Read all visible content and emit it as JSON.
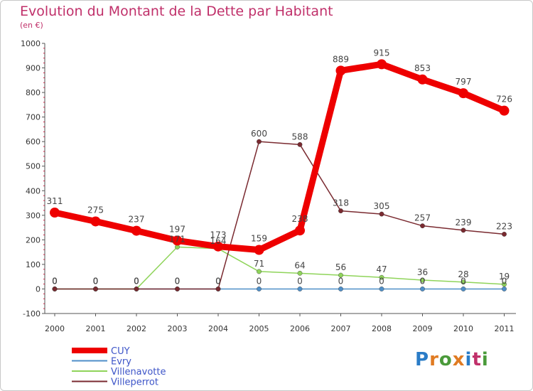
{
  "title": "Evolution du Montant de la Dette par Habitant",
  "subtitle": "(en €)",
  "logo": {
    "text": "Proxiti",
    "letters": [
      "P",
      "r",
      "o",
      "x",
      "i",
      "t",
      "i"
    ],
    "colors": [
      "#2a7cc7",
      "#e07b22",
      "#4a9a3a",
      "#e07b22",
      "#2a7cc7",
      "#c0306a",
      "#4a9a3a"
    ]
  },
  "chart_data": {
    "type": "line",
    "x": [
      "2000",
      "2001",
      "2002",
      "2003",
      "2004",
      "2005",
      "2006",
      "2007",
      "2008",
      "2009",
      "2010",
      "2011"
    ],
    "ylim": [
      -100,
      1000
    ],
    "yticks": [
      "-100",
      "0",
      "100",
      "200",
      "300",
      "400",
      "500",
      "600",
      "700",
      "800",
      "900",
      "1000"
    ],
    "grid": false,
    "legend_position": "bottom-left",
    "series": [
      {
        "name": "CUY",
        "color": "#ee0000",
        "values": [
          311,
          275,
          237,
          197,
          173,
          159,
          238,
          889,
          915,
          853,
          797,
          726
        ],
        "labels": [
          "311",
          "275",
          "237",
          "197",
          "173",
          "159",
          "238",
          "889",
          "915",
          "853",
          "797",
          "726"
        ]
      },
      {
        "name": "Evry",
        "color": "#4f8fc8",
        "values": [
          0,
          0,
          0,
          0,
          0,
          0,
          0,
          0,
          0,
          0,
          0,
          0
        ],
        "labels": [
          "0",
          "0",
          "0",
          "0",
          "0",
          "0",
          "0",
          "0",
          "0",
          "0",
          "0",
          "0"
        ]
      },
      {
        "name": "Villenavotte",
        "color": "#8fd45a",
        "values": [
          0,
          0,
          0,
          171,
          164,
          71,
          64,
          56,
          47,
          36,
          28,
          19
        ],
        "labels": [
          "0",
          "0",
          "0",
          "171",
          "164",
          "71",
          "64",
          "56",
          "47",
          "36",
          "28",
          "19"
        ]
      },
      {
        "name": "Villeperrot",
        "color": "#7a2a30",
        "values": [
          0,
          0,
          0,
          0,
          0,
          600,
          588,
          318,
          305,
          257,
          239,
          223
        ],
        "labels": [
          "0",
          "0",
          "0",
          "0",
          "0",
          "600",
          "588",
          "318",
          "305",
          "257",
          "239",
          "223"
        ]
      }
    ]
  }
}
